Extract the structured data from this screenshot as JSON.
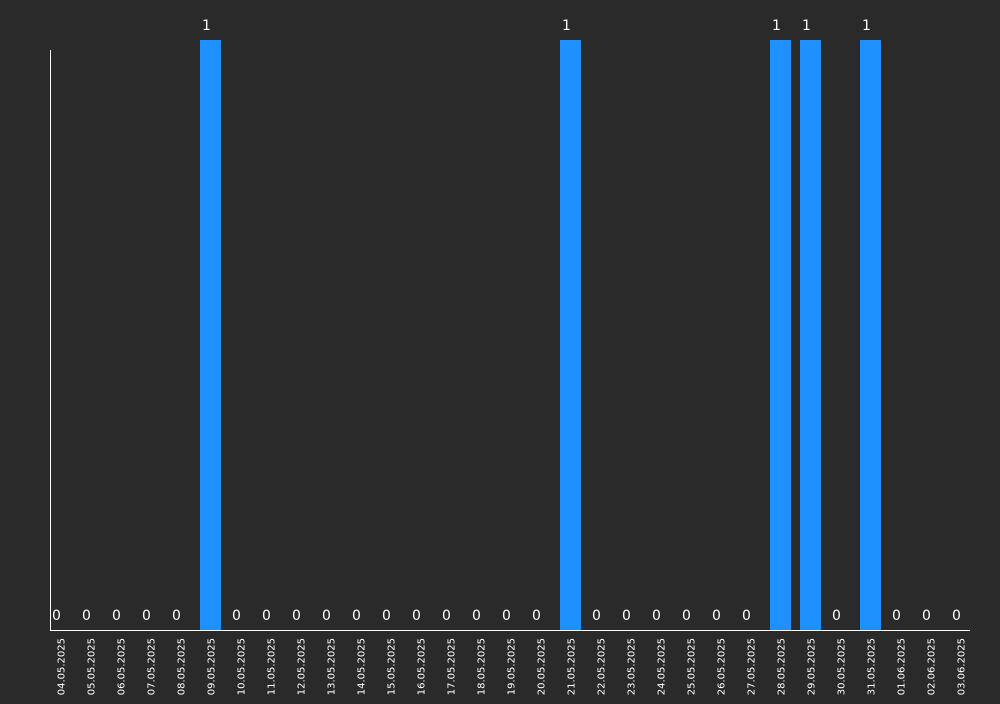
{
  "chart_data": {
    "type": "bar",
    "categories": [
      "04.05.2025",
      "05.05.2025",
      "06.05.2025",
      "07.05.2025",
      "08.05.2025",
      "09.05.2025",
      "10.05.2025",
      "11.05.2025",
      "12.05.2025",
      "13.05.2025",
      "14.05.2025",
      "15.05.2025",
      "16.05.2025",
      "17.05.2025",
      "18.05.2025",
      "19.05.2025",
      "20.05.2025",
      "21.05.2025",
      "22.05.2025",
      "23.05.2025",
      "24.05.2025",
      "25.05.2025",
      "26.05.2025",
      "27.05.2025",
      "28.05.2025",
      "29.05.2025",
      "30.05.2025",
      "31.05.2025",
      "01.06.2025",
      "02.06.2025",
      "03.06.2025"
    ],
    "values": [
      0,
      0,
      0,
      0,
      0,
      1,
      0,
      0,
      0,
      0,
      0,
      0,
      0,
      0,
      0,
      0,
      0,
      1,
      0,
      0,
      0,
      0,
      0,
      0,
      1,
      1,
      0,
      1,
      0,
      0,
      0
    ],
    "ylim": [
      0,
      1
    ],
    "grid": false,
    "colors": {
      "background": "#2a2a2a",
      "bar": "#1e90ff",
      "axis": "#ffffff",
      "text": "#ffffff"
    }
  }
}
